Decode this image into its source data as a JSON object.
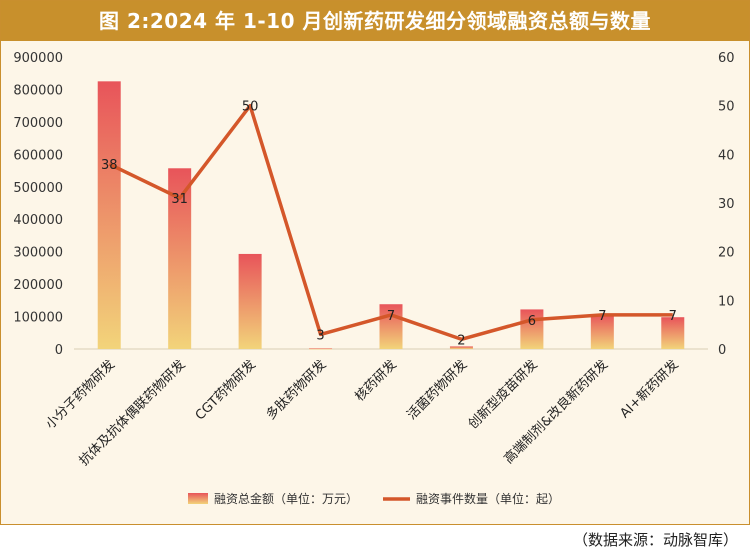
{
  "title": "图 2:2024 年 1-10 月创新药研发细分领域融资总额与数量",
  "source": "（数据来源：动脉智库）",
  "colors": {
    "frame_bg": "#fdf6e8",
    "title_bg": "#c8902c",
    "bar_top": "#e8545a",
    "bar_bottom": "#f2d47a",
    "line": "#d4572a",
    "axis_text": "#333333"
  },
  "chart_data": {
    "type": "bar+line",
    "categories": [
      "小分子药物研发",
      "抗体及抗体偶联药物研发",
      "CGT药物研发",
      "多肽药物研发",
      "核药研发",
      "活菌药物研发",
      "创新型疫苗研发",
      "高端制剂&改良新药研发",
      "AI+新药研发"
    ],
    "series": [
      {
        "name": "融资总金额（单位：万元）",
        "type": "bar",
        "axis": "left",
        "values": [
          825000,
          557000,
          293000,
          2000,
          138000,
          8000,
          122000,
          107000,
          98000
        ]
      },
      {
        "name": "融资事件数量（单位：起）",
        "type": "line",
        "axis": "right",
        "values": [
          38,
          31,
          50,
          3,
          7,
          2,
          6,
          7,
          7
        ]
      }
    ],
    "y_left": {
      "min": 0,
      "max": 900000,
      "ticks": [
        "0",
        "100000",
        "200000",
        "300000",
        "400000",
        "500000",
        "600000",
        "700000",
        "800000",
        "900000"
      ]
    },
    "y_right": {
      "min": 0,
      "max": 60,
      "ticks": [
        "0",
        "10",
        "20",
        "30",
        "40",
        "50",
        "60"
      ]
    },
    "grid": false,
    "legend_position": "bottom"
  }
}
